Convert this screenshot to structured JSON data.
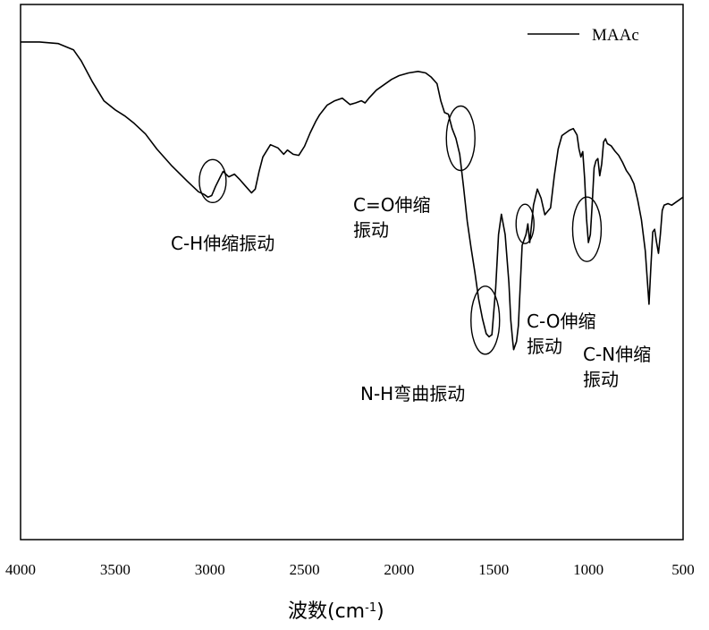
{
  "chart_data": {
    "type": "line",
    "title": "",
    "xlabel_main": "波数(cm",
    "xlabel_sup": "-1",
    "xlabel_close": ")",
    "ylabel": "",
    "x_reversed": true,
    "xlim": [
      4000,
      500
    ],
    "ylim": [
      0,
      100
    ],
    "xticks": [
      4000,
      3500,
      3000,
      2500,
      2000,
      1500,
      1000,
      500
    ],
    "xtick_labels": [
      "4000",
      "3500",
      "3000",
      "2500",
      "2000",
      "1500",
      "1000",
      "500"
    ],
    "grid": false,
    "legend_position": "top-right",
    "series": [
      {
        "name": "MAAc",
        "color": "#000000",
        "x": [
          4000,
          3900,
          3800,
          3720,
          3680,
          3620,
          3560,
          3500,
          3450,
          3400,
          3340,
          3280,
          3200,
          3120,
          3060,
          3030,
          3010,
          2990,
          2970,
          2945,
          2930,
          2900,
          2870,
          2840,
          2810,
          2780,
          2760,
          2740,
          2720,
          2680,
          2640,
          2610,
          2590,
          2560,
          2530,
          2500,
          2470,
          2440,
          2420,
          2380,
          2340,
          2300,
          2260,
          2230,
          2200,
          2180,
          2160,
          2120,
          2080,
          2040,
          2000,
          1950,
          1900,
          1860,
          1830,
          1800,
          1780,
          1760,
          1740,
          1720,
          1700,
          1680,
          1660,
          1640,
          1620,
          1600,
          1580,
          1560,
          1540,
          1525,
          1510,
          1490,
          1475,
          1460,
          1440,
          1420,
          1410,
          1400,
          1395,
          1380,
          1370,
          1350,
          1330,
          1320,
          1310,
          1290,
          1270,
          1250,
          1230,
          1200,
          1180,
          1160,
          1140,
          1100,
          1080,
          1060,
          1050,
          1040,
          1030,
          1020,
          1010,
          1000,
          990,
          980,
          970,
          960,
          950,
          940,
          930,
          920,
          910,
          900,
          880,
          860,
          840,
          820,
          800,
          780,
          760,
          740,
          720,
          700,
          690,
          680,
          670,
          660,
          650,
          640,
          630,
          620,
          610,
          600,
          580,
          560,
          540,
          520,
          500
        ],
        "y": [
          93.0,
          93.0,
          92.7,
          91.5,
          89.5,
          85.5,
          82.0,
          80.3,
          79.2,
          77.8,
          75.8,
          73.0,
          69.8,
          67.0,
          65.0,
          64.5,
          64.0,
          64.3,
          66.0,
          67.8,
          68.8,
          67.8,
          68.3,
          67.2,
          66.0,
          64.8,
          65.5,
          68.8,
          71.5,
          73.8,
          73.2,
          72.0,
          72.8,
          72.0,
          71.8,
          73.5,
          76.0,
          78.2,
          79.4,
          81.2,
          82.0,
          82.5,
          81.3,
          81.6,
          82.0,
          81.6,
          82.5,
          84.0,
          85.0,
          86.0,
          86.7,
          87.2,
          87.5,
          87.2,
          86.4,
          85.2,
          82.0,
          79.8,
          79.5,
          76.8,
          75.0,
          72.0,
          66.0,
          59.5,
          54.5,
          50.0,
          45.0,
          41.3,
          38.5,
          37.9,
          38.3,
          47.0,
          57.0,
          60.8,
          57.0,
          48.0,
          41.0,
          37.0,
          35.5,
          37.0,
          40.0,
          55.0,
          57.0,
          59.0,
          55.5,
          62.5,
          65.5,
          63.8,
          60.7,
          62.0,
          68.0,
          73.0,
          75.5,
          76.5,
          76.8,
          75.6,
          73.0,
          71.5,
          72.5,
          67.5,
          60.0,
          55.5,
          57.0,
          62.8,
          69.5,
          70.8,
          71.2,
          68.0,
          70.2,
          74.3,
          74.9,
          74.0,
          73.6,
          72.6,
          71.8,
          70.5,
          69.0,
          68.0,
          66.5,
          63.5,
          59.8,
          54.0,
          49.0,
          44.0,
          51.0,
          57.5,
          58.0,
          55.5,
          53.5,
          57.0,
          61.5,
          62.5,
          62.8,
          62.5,
          63.0,
          63.5,
          64.0
        ]
      }
    ],
    "annotations": [
      {
        "lines": [
          "C-H伸缩振动"
        ],
        "target_x": 2985,
        "target_y": 67.0
      },
      {
        "lines": [
          "C=O伸缩",
          "振动"
        ],
        "target_x": 1675,
        "target_y": 75.0
      },
      {
        "lines": [
          "N-H弯曲振动"
        ],
        "target_x": 1545,
        "target_y": 41.0
      },
      {
        "lines": [
          "C-O伸缩",
          "振动"
        ],
        "target_x": 1335,
        "target_y": 59.0
      },
      {
        "lines": [
          "C-N伸缩",
          "振动"
        ],
        "target_x": 1008,
        "target_y": 58.0
      }
    ]
  }
}
